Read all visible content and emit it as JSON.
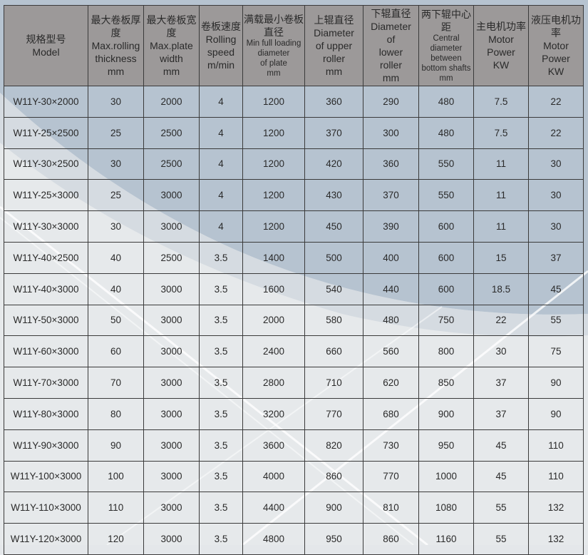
{
  "table": {
    "headers": [
      {
        "zh": "规格型号",
        "en": [
          "Model"
        ]
      },
      {
        "zh": "最大卷板厚度",
        "en": [
          "Max.rolling",
          "thickness",
          "mm"
        ]
      },
      {
        "zh": "最大卷板宽度",
        "en": [
          "Max.plate",
          "width",
          "mm"
        ]
      },
      {
        "zh": "卷板速度",
        "en": [
          "Rolling",
          "speed",
          "m/min"
        ]
      },
      {
        "zh": "满载最小卷板直径",
        "en": [
          "Min full loading",
          "diameter",
          "of plate",
          "mm"
        ]
      },
      {
        "zh": "上辊直径",
        "en": [
          "Diameter",
          "of upper",
          "roller",
          "mm"
        ]
      },
      {
        "zh": "下辊直径",
        "en": [
          "Diameter",
          "of",
          "lower",
          "roller",
          "mm"
        ]
      },
      {
        "zh": "两下辊中心距",
        "en": [
          "Central",
          "diameter",
          "between",
          "bottom shafts",
          "mm"
        ]
      },
      {
        "zh": "主电机功率",
        "en": [
          "Motor",
          "Power",
          "KW"
        ]
      },
      {
        "zh": "液压电机功率",
        "en": [
          "Motor",
          "Power",
          "KW"
        ]
      }
    ],
    "rows": [
      [
        "W11Y-30×2000",
        "30",
        "2000",
        "4",
        "1200",
        "360",
        "290",
        "480",
        "7.5",
        "22"
      ],
      [
        "W11Y-25×2500",
        "25",
        "2500",
        "4",
        "1200",
        "370",
        "300",
        "480",
        "7.5",
        "22"
      ],
      [
        "W11Y-30×2500",
        "30",
        "2500",
        "4",
        "1200",
        "420",
        "360",
        "550",
        "11",
        "30"
      ],
      [
        "W11Y-25×3000",
        "25",
        "3000",
        "4",
        "1200",
        "430",
        "370",
        "550",
        "11",
        "30"
      ],
      [
        "W11Y-30×3000",
        "30",
        "3000",
        "4",
        "1200",
        "450",
        "390",
        "600",
        "11",
        "30"
      ],
      [
        "W11Y-40×2500",
        "40",
        "2500",
        "3.5",
        "1400",
        "500",
        "400",
        "600",
        "15",
        "37"
      ],
      [
        "W11Y-40×3000",
        "40",
        "3000",
        "3.5",
        "1600",
        "540",
        "440",
        "600",
        "18.5",
        "45"
      ],
      [
        "W11Y-50×3000",
        "50",
        "3000",
        "3.5",
        "2000",
        "580",
        "480",
        "750",
        "22",
        "55"
      ],
      [
        "W11Y-60×3000",
        "60",
        "3000",
        "3.5",
        "2400",
        "660",
        "560",
        "800",
        "30",
        "75"
      ],
      [
        "W11Y-70×3000",
        "70",
        "3000",
        "3.5",
        "2800",
        "710",
        "620",
        "850",
        "37",
        "90"
      ],
      [
        "W11Y-80×3000",
        "80",
        "3000",
        "3.5",
        "3200",
        "770",
        "680",
        "900",
        "37",
        "90"
      ],
      [
        "W11Y-90×3000",
        "90",
        "3000",
        "3.5",
        "3600",
        "820",
        "730",
        "950",
        "45",
        "110"
      ],
      [
        "W11Y-100×3000",
        "100",
        "3000",
        "3.5",
        "4000",
        "860",
        "770",
        "1000",
        "45",
        "110"
      ],
      [
        "W11Y-110×3000",
        "110",
        "3000",
        "3.5",
        "4400",
        "900",
        "810",
        "1080",
        "55",
        "132"
      ],
      [
        "W11Y-120×3000",
        "120",
        "3000",
        "3.5",
        "4800",
        "950",
        "860",
        "1160",
        "55",
        "132"
      ]
    ]
  }
}
